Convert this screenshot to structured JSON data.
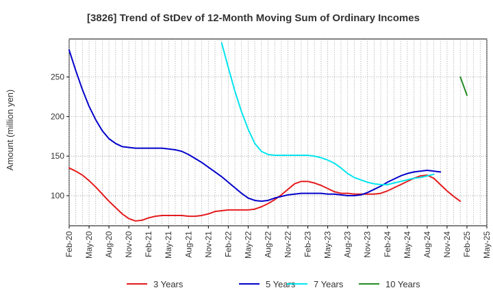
{
  "chart_data": {
    "type": "line",
    "title": "[3826]  Trend of StDev of 12-Month Moving Sum of Ordinary Incomes",
    "ylabel": "Amount (million yen)",
    "xlabel": "",
    "ylim": [
      62,
      298
    ],
    "yticks": [
      100,
      150,
      200,
      250
    ],
    "x_tick_labels": [
      "Feb-20",
      "May-20",
      "Aug-20",
      "Nov-20",
      "Feb-21",
      "May-21",
      "Aug-21",
      "Nov-21",
      "Feb-22",
      "May-22",
      "Aug-22",
      "Nov-22",
      "Feb-23",
      "May-23",
      "Aug-23",
      "Nov-23",
      "Feb-24",
      "May-24",
      "Aug-24",
      "Nov-24",
      "Feb-25",
      "May-25"
    ],
    "grid": true,
    "legend_position": "bottom",
    "series": [
      {
        "name": "3 Years",
        "color": "#e41a1c",
        "start": "Feb-20",
        "values": [
          135,
          131,
          126,
          119,
          111,
          102,
          93,
          85,
          77,
          71,
          68,
          69,
          72,
          74,
          75,
          75,
          75,
          75,
          74,
          74,
          75,
          77,
          80,
          81,
          82,
          82,
          82,
          82,
          83,
          86,
          90,
          95,
          101,
          108,
          115,
          118,
          118,
          116,
          113,
          109,
          105,
          103,
          103,
          102,
          102,
          102,
          102,
          103,
          106,
          110,
          114,
          118,
          122,
          125,
          126,
          122,
          114,
          106,
          99,
          93
        ]
      },
      {
        "name": "5 Years",
        "color": "#0000cc",
        "start": "Feb-20",
        "values": [
          284,
          258,
          234,
          213,
          196,
          182,
          172,
          166,
          162,
          161,
          160,
          160,
          160,
          160,
          160,
          159,
          158,
          156,
          152,
          147,
          142,
          136,
          130,
          124,
          117,
          110,
          103,
          97,
          94,
          93,
          94,
          97,
          99,
          101,
          102,
          103,
          103,
          103,
          103,
          102,
          102,
          101,
          100,
          100,
          101,
          104,
          108,
          112,
          117,
          121,
          125,
          128,
          130,
          131,
          132,
          131,
          130
        ]
      },
      {
        "name": "7 Years",
        "color": "#00e5ee",
        "start": "Jan-22",
        "values": [
          293,
          262,
          232,
          206,
          184,
          166,
          156,
          152,
          151,
          151,
          151,
          151,
          151,
          151,
          150,
          148,
          145,
          141,
          135,
          128,
          123,
          120,
          117,
          115,
          114,
          114,
          116,
          118,
          120,
          122,
          123,
          125,
          127
        ]
      },
      {
        "name": "10 Years",
        "color": "#228b22",
        "start": "Jan-25",
        "values": [
          250,
          227
        ]
      }
    ]
  }
}
